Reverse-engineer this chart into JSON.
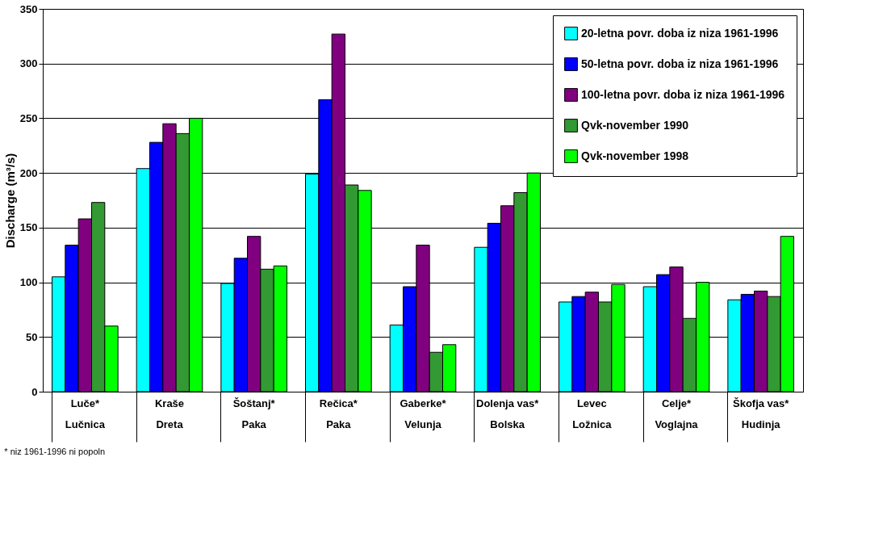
{
  "chart_data": {
    "type": "bar",
    "ylabel": "Discharge (m³/s)",
    "categories": [
      "Luče*\nLučnica",
      "Kraše\nDreta",
      "Šoštanj*\nPaka",
      "Rečica*\nPaka",
      "Gaberke*\nVelunja",
      "Dolenja vas*\nBolska",
      "Levec\nLožnica",
      "Celje*\nVoglajna",
      "Škofja vas*\nHudinja"
    ],
    "series": [
      {
        "name": "20-letna povr. doba iz niza 1961-1996",
        "color": "#00ffff",
        "values": [
          105,
          204,
          99,
          199,
          61,
          132,
          82,
          96,
          84
        ]
      },
      {
        "name": "50-letna povr. doba iz niza 1961-1996",
        "color": "#0000ff",
        "values": [
          134,
          228,
          122,
          267,
          96,
          154,
          87,
          107,
          89
        ]
      },
      {
        "name": "100-letna povr. doba iz niza 1961-1996",
        "color": "#800080",
        "values": [
          158,
          245,
          142,
          327,
          134,
          170,
          91,
          114,
          92
        ]
      },
      {
        "name": "Qvk-november 1990",
        "color": "#339933",
        "values": [
          173,
          236,
          112,
          189,
          36,
          182,
          82,
          67,
          87
        ]
      },
      {
        "name": "Qvk-november 1998",
        "color": "#00ff00",
        "values": [
          60,
          250,
          115,
          184,
          43,
          200,
          98,
          100,
          142
        ]
      }
    ],
    "ylim": [
      0,
      350
    ],
    "yticks": [
      0,
      50,
      100,
      150,
      200,
      250,
      300,
      350
    ],
    "grid": "y",
    "legend": "top right",
    "annotations": [
      "*  niz 1961-1996 ni popoln"
    ]
  }
}
